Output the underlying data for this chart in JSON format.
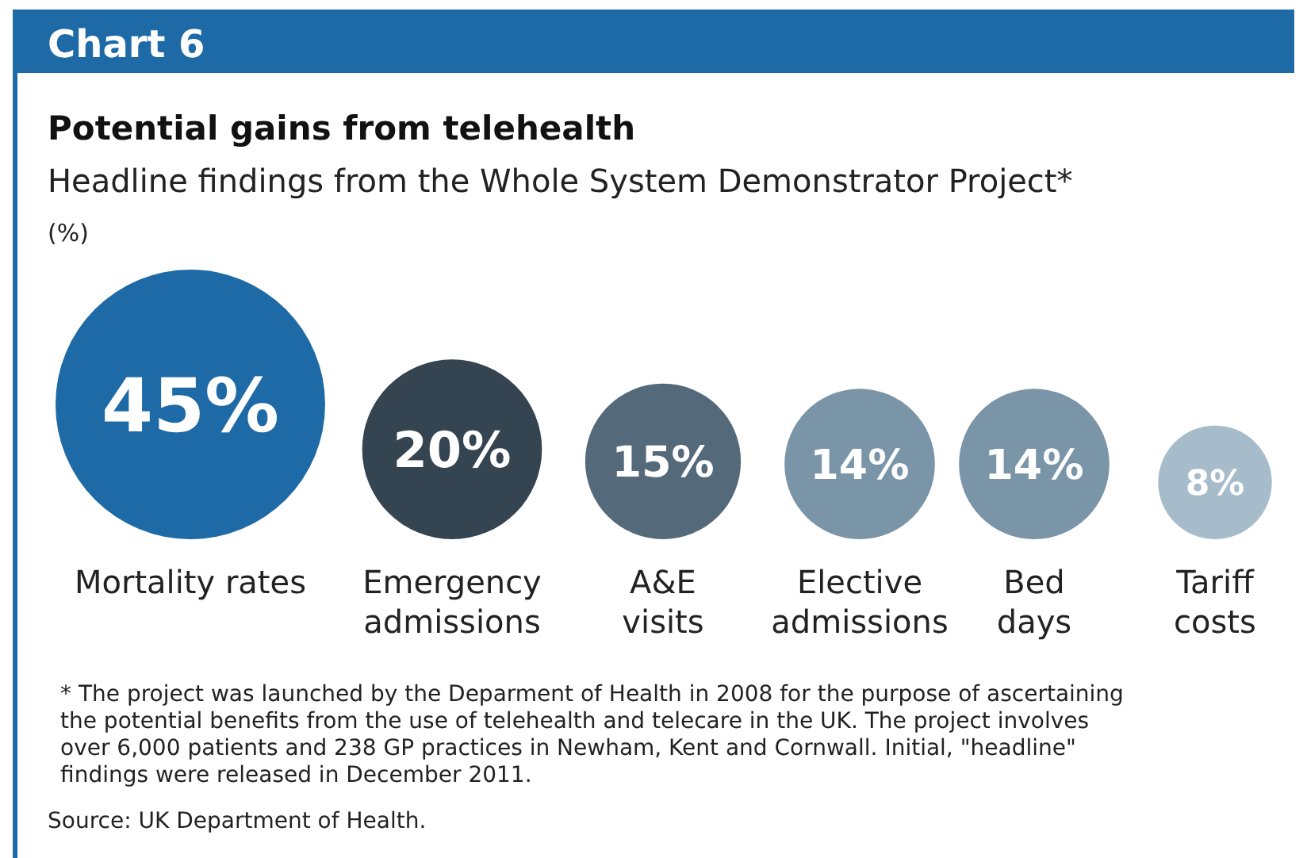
{
  "chart_data": {
    "type": "other",
    "title": "Potential gains from telehealth",
    "subtitle": "Headline findings from the Whole System Demonstrator Project*",
    "ylabel": "(%)",
    "categories": [
      "Mortality rates",
      "Emergency admissions",
      "A&E visits",
      "Elective admissions",
      "Bed days",
      "Tariff costs"
    ],
    "values": [
      45,
      20,
      15,
      14,
      14,
      8
    ],
    "value_labels": [
      "45%",
      "20%",
      "15%",
      "14%",
      "14%",
      "8%"
    ],
    "colors": [
      "#1e6aa6",
      "#344450",
      "#546a7b",
      "#7b95a8",
      "#7b95a8",
      "#a6bccb"
    ],
    "annotations": [
      "Chart 6",
      "* The project was launched by the Deparment of Health in 2008 for the purpose of ascertaining the potential benefits from the use of telehealth and telecare in the UK. The project involves over 6,000 patients and 238 GP practices in Newham, Kent and Cornwall. Initial, \"headline\" findings were released in December 2011.",
      "Source: UK Department of Health."
    ]
  }
}
